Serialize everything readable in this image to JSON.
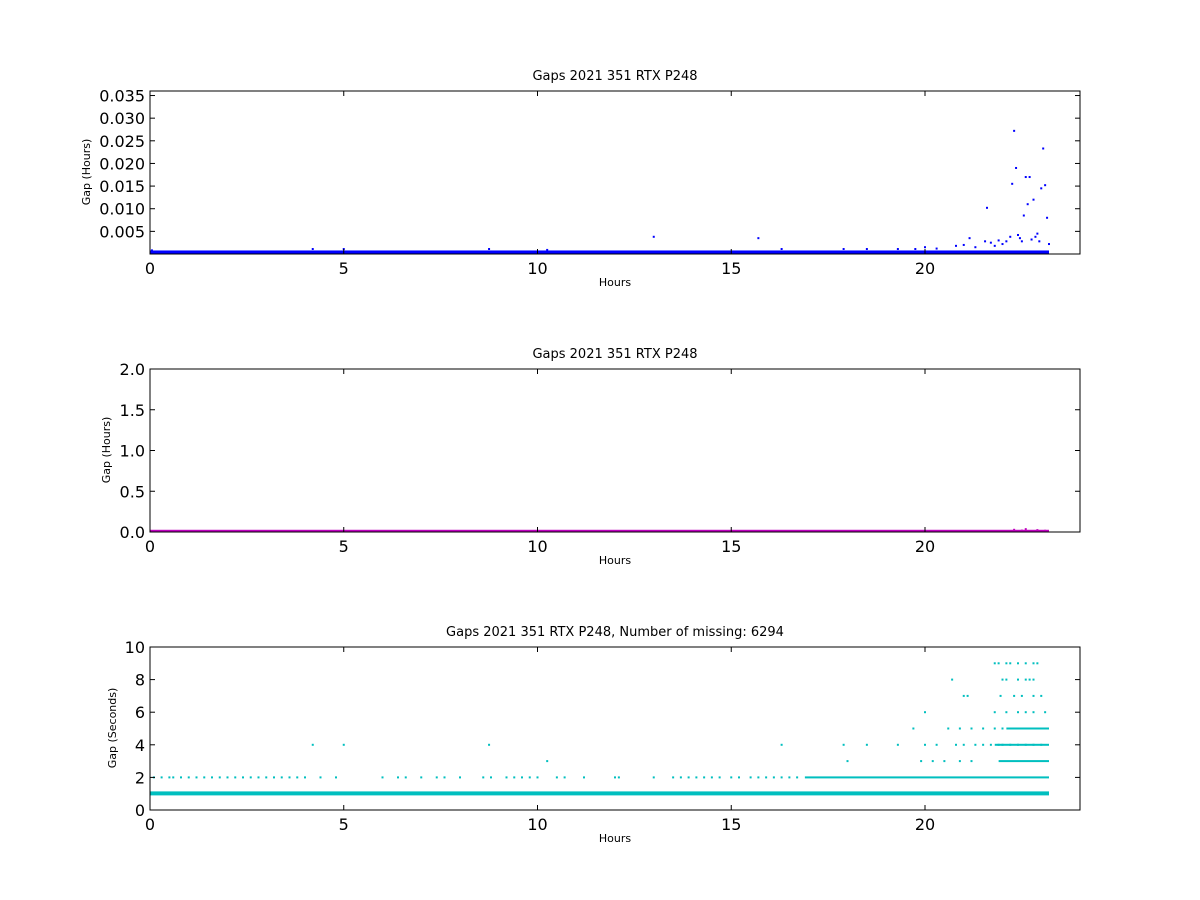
{
  "chart_data": [
    {
      "type": "scatter",
      "title": "Gaps 2021 351 RTX  P248",
      "xlabel": "Hours",
      "ylabel": "Gap (Hours)",
      "xlim": [
        0,
        24
      ],
      "ylim": [
        0,
        0.036
      ],
      "xticks": [
        "0",
        "5",
        "10",
        "15",
        "20"
      ],
      "xtick_values": [
        0,
        5,
        10,
        15,
        20
      ],
      "yticks": [
        "0.005",
        "0.010",
        "0.015",
        "0.020",
        "0.025",
        "0.030",
        "0.035"
      ],
      "ytick_values": [
        0.005,
        0.01,
        0.015,
        0.02,
        0.025,
        0.03,
        0.035
      ],
      "grid": false,
      "color": "#0000ff",
      "baseline_band": {
        "x_start": 0,
        "x_end": 23.2,
        "y_low": 0.00028,
        "y_high": 0.00056
      },
      "series": [
        {
          "x": [
            0.05,
            4.2,
            5.0,
            8.75,
            10.25,
            13.0,
            15.7,
            16.3,
            17.9,
            18.5,
            19.3,
            19.75,
            20.0,
            20.3,
            20.8,
            21.0,
            21.15,
            21.3,
            21.55,
            21.6,
            21.7,
            21.8,
            21.9,
            22.0,
            22.1,
            22.2,
            22.25,
            22.3,
            22.35,
            22.4,
            22.45,
            22.5,
            22.55,
            22.6,
            22.65,
            22.7,
            22.75,
            22.8,
            22.85,
            22.9,
            22.95,
            23.0,
            23.05,
            23.1,
            23.15,
            23.2
          ],
          "y": [
            0.0008,
            0.0011,
            0.0011,
            0.0011,
            0.0009,
            0.0038,
            0.0035,
            0.0011,
            0.0011,
            0.0011,
            0.0011,
            0.0011,
            0.0015,
            0.0012,
            0.0018,
            0.002,
            0.0035,
            0.0015,
            0.0028,
            0.0102,
            0.0025,
            0.0018,
            0.003,
            0.0022,
            0.0028,
            0.0038,
            0.0155,
            0.0272,
            0.019,
            0.0042,
            0.0035,
            0.0028,
            0.0085,
            0.017,
            0.011,
            0.017,
            0.0032,
            0.012,
            0.0038,
            0.0045,
            0.0028,
            0.0145,
            0.0233,
            0.0152,
            0.008,
            0.0022
          ]
        }
      ]
    },
    {
      "type": "scatter",
      "title": "Gaps 2021 351 RTX  P248",
      "xlabel": "Hours",
      "ylabel": "Gap (Hours)",
      "xlim": [
        0,
        24
      ],
      "ylim": [
        0,
        2.0
      ],
      "xticks": [
        "0",
        "5",
        "10",
        "15",
        "20"
      ],
      "xtick_values": [
        0,
        5,
        10,
        15,
        20
      ],
      "yticks": [
        "0.0",
        "0.5",
        "1.0",
        "1.5",
        "2.0"
      ],
      "ytick_values": [
        0,
        0.5,
        1.0,
        1.5,
        2.0
      ],
      "grid": false,
      "color": "#bf00bf",
      "baseline_band": {
        "x_start": 0,
        "x_end": 23.2,
        "y_low": 0.0,
        "y_high": 0.015
      },
      "series": [
        {
          "x": [
            22.3,
            22.5,
            22.6,
            22.9,
            23.1
          ],
          "y": [
            0.027,
            0.017,
            0.035,
            0.023,
            0.015
          ]
        }
      ]
    },
    {
      "type": "scatter",
      "title": "Gaps 2021 351 RTX  P248, Number of missing: 6294",
      "xlabel": "Hours",
      "ylabel": "Gap (Seconds)",
      "xlim": [
        0,
        24
      ],
      "ylim": [
        0,
        10
      ],
      "xticks": [
        "0",
        "5",
        "10",
        "15",
        "20"
      ],
      "xtick_values": [
        0,
        5,
        10,
        15,
        20
      ],
      "yticks": [
        "0",
        "2",
        "4",
        "6",
        "8",
        "10"
      ],
      "ytick_values": [
        0,
        2,
        4,
        6,
        8,
        10
      ],
      "grid": false,
      "color": "#00bfbf",
      "baseline_band": {
        "x_start": 0,
        "x_end": 23.2,
        "y_low": 0.92,
        "y_high": 1.08
      },
      "dense_segments": [
        {
          "y": 2,
          "x_start": 16.9,
          "x_end": 23.2
        },
        {
          "y": 4,
          "x_start": 21.8,
          "x_end": 23.2
        },
        {
          "y": 3,
          "x_start": 21.9,
          "x_end": 23.2
        },
        {
          "y": 5,
          "x_start": 22.1,
          "x_end": 23.2
        }
      ],
      "series": [
        {
          "x": [
            0.1,
            0.3,
            0.5,
            0.6,
            0.8,
            1.0,
            1.2,
            1.4,
            1.6,
            1.8,
            2.0,
            2.2,
            2.4,
            2.6,
            2.8,
            3.0,
            3.2,
            3.4,
            3.6,
            3.8,
            4.0,
            4.4,
            4.8,
            6.0,
            6.4,
            6.6,
            7.0,
            7.4,
            7.6,
            8.0,
            8.6,
            8.8,
            9.2,
            9.4,
            9.6,
            9.8,
            10.0,
            10.5,
            10.7,
            11.2,
            12.0,
            12.1,
            13.0,
            13.5,
            13.7,
            13.9,
            14.1,
            14.3,
            14.5,
            14.7,
            15.0,
            15.2,
            15.5,
            15.7,
            15.9,
            16.1,
            16.3,
            16.5,
            16.7,
            4.2,
            5.0,
            8.75,
            16.3,
            17.9,
            18.5,
            19.3,
            20.0,
            20.3,
            20.8,
            21.0,
            21.3,
            21.5,
            21.7,
            21.9,
            22.0,
            22.2,
            22.4,
            22.6,
            22.8,
            23.0,
            10.25,
            18.0,
            19.9,
            20.2,
            20.5,
            20.9,
            21.2,
            19.7,
            20.6,
            20.9,
            21.2,
            21.5,
            21.8,
            22.0,
            22.3,
            22.5,
            22.9,
            23.1,
            20.0,
            21.8,
            22.1,
            22.4,
            22.6,
            22.8,
            23.1,
            21.0,
            21.1,
            21.95,
            22.3,
            22.5,
            22.8,
            23.0,
            20.7,
            22.0,
            22.1,
            22.4,
            22.6,
            22.7,
            22.8,
            21.8,
            21.9,
            22.1,
            22.2,
            22.4,
            22.6,
            22.8,
            22.9
          ],
          "y": [
            2,
            2,
            2,
            2,
            2,
            2,
            2,
            2,
            2,
            2,
            2,
            2,
            2,
            2,
            2,
            2,
            2,
            2,
            2,
            2,
            2,
            2,
            2,
            2,
            2,
            2,
            2,
            2,
            2,
            2,
            2,
            2,
            2,
            2,
            2,
            2,
            2,
            2,
            2,
            2,
            2,
            2,
            2,
            2,
            2,
            2,
            2,
            2,
            2,
            2,
            2,
            2,
            2,
            2,
            2,
            2,
            2,
            2,
            2,
            4,
            4,
            4,
            4,
            4,
            4,
            4,
            4,
            4,
            4,
            4,
            4,
            4,
            4,
            4,
            4,
            4,
            4,
            4,
            4,
            4,
            3,
            3,
            3,
            3,
            3,
            3,
            3,
            5,
            5,
            5,
            5,
            5,
            5,
            5,
            5,
            5,
            5,
            5,
            6,
            6,
            6,
            6,
            6,
            6,
            6,
            7,
            7,
            7,
            7,
            7,
            7,
            7,
            8,
            8,
            8,
            8,
            8,
            8,
            8,
            9,
            9,
            9,
            9,
            9,
            9,
            9,
            9
          ]
        }
      ]
    }
  ]
}
